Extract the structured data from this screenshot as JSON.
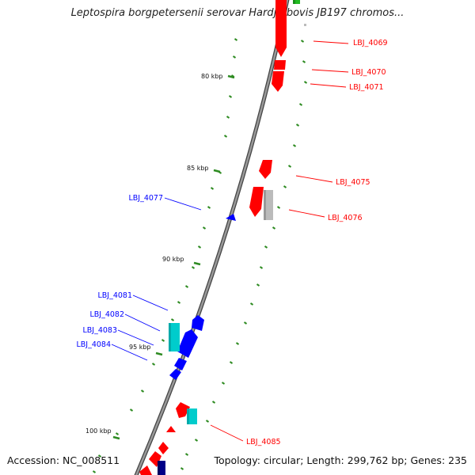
{
  "title": "Leptospira borgpetersenii serovar Hardjo-bovis JB197 chromos...",
  "footer": {
    "accession_label": "Accession:",
    "accession": "NC_008511",
    "topology_label": "Topology:",
    "topology": "circular",
    "length_label": "Length:",
    "length": "299,762 bp",
    "genes_label": "Genes:",
    "genes": "235"
  },
  "scale_labels": [
    "80 kbp",
    "85 kbp",
    "90 kbp",
    "95 kbp",
    "100 kbp"
  ],
  "colors": {
    "forward_strand": "#ff0000",
    "reverse_strand": "#0000ff",
    "rna": "#00cccc",
    "other": "#bbbbbb",
    "top_feature": "#22bb22",
    "gc_marks": "#2e8b22",
    "backbone": "#777777"
  },
  "genes": [
    {
      "id": "LBJ_4069",
      "strand": "forward"
    },
    {
      "id": "LBJ_4070",
      "strand": "forward"
    },
    {
      "id": "LBJ_4071",
      "strand": "forward"
    },
    {
      "id": "LBJ_4075",
      "strand": "forward"
    },
    {
      "id": "LBJ_4076",
      "strand": "forward"
    },
    {
      "id": "LBJ_4077",
      "strand": "reverse"
    },
    {
      "id": "LBJ_4081",
      "strand": "reverse"
    },
    {
      "id": "LBJ_4082",
      "strand": "reverse"
    },
    {
      "id": "LBJ_4083",
      "strand": "reverse"
    },
    {
      "id": "LBJ_4084",
      "strand": "reverse"
    },
    {
      "id": "LBJ_4085",
      "strand": "forward"
    }
  ]
}
